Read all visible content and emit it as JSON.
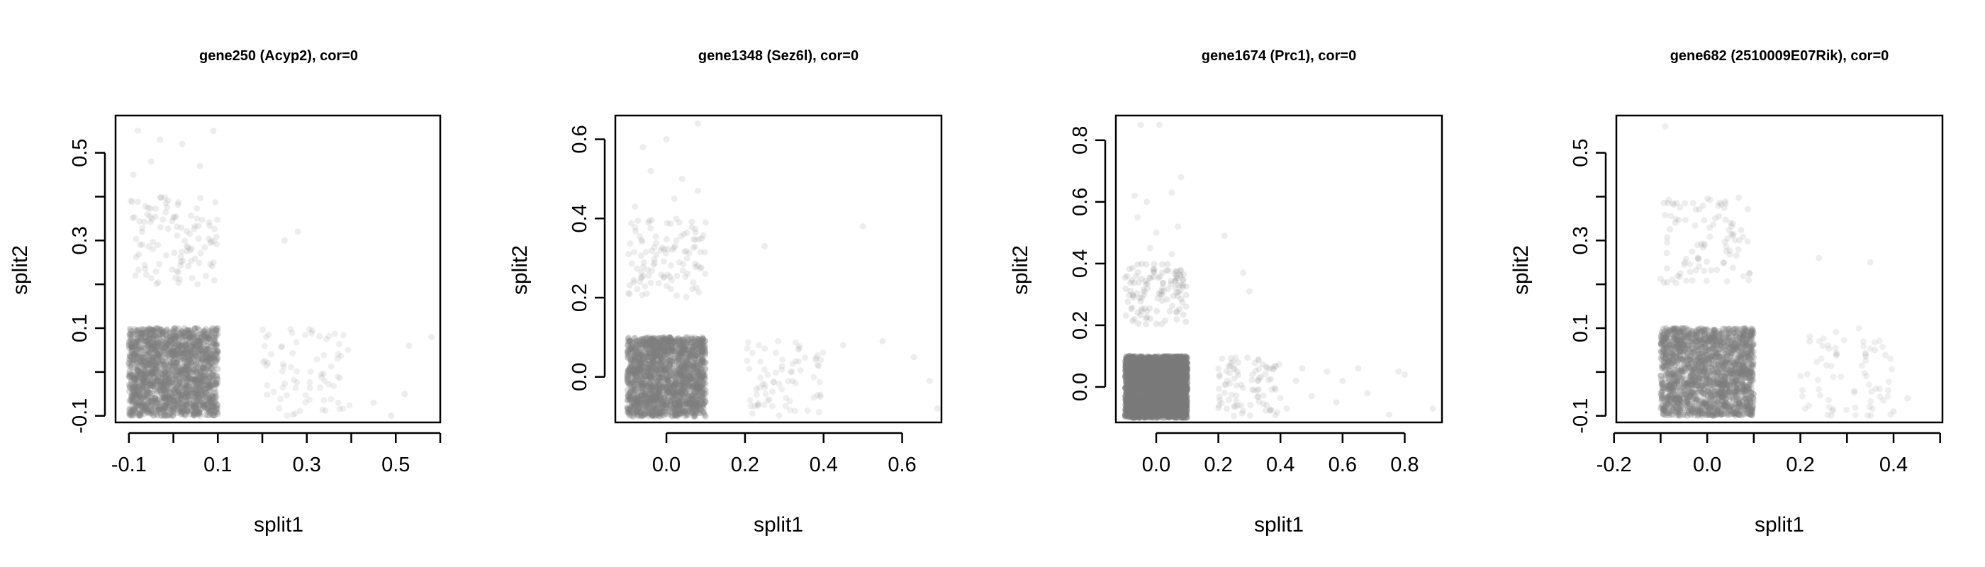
{
  "chart_data": [
    {
      "type": "scatter",
      "title": "gene250 (Acyp2), cor=0",
      "xlabel": "split1",
      "ylabel": "split2",
      "xlim": [
        -0.13,
        0.6
      ],
      "ylim": [
        -0.115,
        0.585
      ],
      "xticks": [
        -0.1,
        0.1,
        0.3,
        0.5
      ],
      "xtick_minor": [
        0.0,
        0.2,
        0.4,
        0.6
      ],
      "xtick_labels": [
        "-0.1",
        "0.1",
        "0.3",
        "0.5"
      ],
      "yticks": [
        -0.1,
        0.1,
        0.3,
        0.5
      ],
      "ytick_minor": [
        0.0,
        0.2,
        0.4
      ],
      "ytick_labels": [
        "-0.1",
        "0.1",
        "0.3",
        "0.5"
      ],
      "clusters": [
        {
          "x_range": [
            -0.1,
            0.1
          ],
          "y_range": [
            -0.1,
            0.1
          ],
          "n": 1800,
          "opacity": 0.28,
          "color": "#7f7f7f"
        },
        {
          "x_range": [
            -0.1,
            0.1
          ],
          "y_range": [
            0.2,
            0.4
          ],
          "n": 110,
          "opacity": 0.16,
          "color": "#8c8c8c"
        },
        {
          "x_range": [
            0.2,
            0.4
          ],
          "y_range": [
            -0.1,
            0.1
          ],
          "n": 75,
          "opacity": 0.14,
          "color": "#8c8c8c"
        }
      ],
      "extra_points": [
        [
          -0.08,
          0.55
        ],
        [
          -0.03,
          0.53
        ],
        [
          0.02,
          0.52
        ],
        [
          0.09,
          0.55
        ],
        [
          0.06,
          0.47
        ],
        [
          -0.09,
          0.45
        ],
        [
          -0.05,
          0.48
        ],
        [
          0.25,
          0.3
        ],
        [
          0.28,
          0.32
        ],
        [
          0.45,
          -0.07
        ],
        [
          0.52,
          -0.05
        ],
        [
          0.53,
          0.06
        ],
        [
          0.58,
          0.08
        ],
        [
          0.49,
          -0.1
        ]
      ]
    },
    {
      "type": "scatter",
      "title": "gene1348 (Sez6l), cor=0",
      "xlabel": "split1",
      "ylabel": "split2",
      "xlim": [
        -0.13,
        0.7
      ],
      "ylim": [
        -0.115,
        0.66
      ],
      "xticks": [
        0.0,
        0.2,
        0.4,
        0.6
      ],
      "xtick_minor": [],
      "xtick_labels": [
        "0.0",
        "0.2",
        "0.4",
        "0.6"
      ],
      "yticks": [
        0.0,
        0.2,
        0.4,
        0.6
      ],
      "ytick_minor": [],
      "ytick_labels": [
        "0.0",
        "0.2",
        "0.4",
        "0.6"
      ],
      "clusters": [
        {
          "x_range": [
            -0.1,
            0.1
          ],
          "y_range": [
            -0.1,
            0.1
          ],
          "n": 1800,
          "opacity": 0.28,
          "color": "#7f7f7f"
        },
        {
          "x_range": [
            -0.1,
            0.1
          ],
          "y_range": [
            0.2,
            0.4
          ],
          "n": 110,
          "opacity": 0.16,
          "color": "#8c8c8c"
        },
        {
          "x_range": [
            0.2,
            0.4
          ],
          "y_range": [
            -0.1,
            0.1
          ],
          "n": 75,
          "opacity": 0.14,
          "color": "#8c8c8c"
        }
      ],
      "extra_points": [
        [
          -0.06,
          0.58
        ],
        [
          0.0,
          0.6
        ],
        [
          0.08,
          0.64
        ],
        [
          -0.04,
          0.52
        ],
        [
          0.04,
          0.5
        ],
        [
          0.08,
          0.47
        ],
        [
          -0.08,
          0.43
        ],
        [
          0.02,
          0.45
        ],
        [
          0.5,
          0.38
        ],
        [
          0.45,
          0.08
        ],
        [
          0.55,
          0.09
        ],
        [
          0.63,
          0.05
        ],
        [
          0.67,
          -0.01
        ],
        [
          0.69,
          -0.08
        ],
        [
          0.25,
          0.33
        ]
      ]
    },
    {
      "type": "scatter",
      "title": "gene1674 (Prc1), cor=0",
      "xlabel": "split1",
      "ylabel": "split2",
      "xlim": [
        -0.13,
        0.92
      ],
      "ylim": [
        -0.115,
        0.88
      ],
      "xticks": [
        0.0,
        0.2,
        0.4,
        0.6,
        0.8
      ],
      "xtick_minor": [],
      "xtick_labels": [
        "0.0",
        "0.2",
        "0.4",
        "0.6",
        "0.8"
      ],
      "yticks": [
        0.0,
        0.2,
        0.4,
        0.6,
        0.8
      ],
      "ytick_minor": [],
      "ytick_labels": [
        "0.0",
        "0.2",
        "0.4",
        "0.6",
        "0.8"
      ],
      "clusters": [
        {
          "x_range": [
            -0.1,
            0.1
          ],
          "y_range": [
            -0.1,
            0.1
          ],
          "n": 2400,
          "opacity": 0.45,
          "color": "#7a7a7a"
        },
        {
          "x_range": [
            -0.1,
            0.1
          ],
          "y_range": [
            0.2,
            0.4
          ],
          "n": 120,
          "opacity": 0.18,
          "color": "#8c8c8c"
        },
        {
          "x_range": [
            0.2,
            0.4
          ],
          "y_range": [
            -0.1,
            0.1
          ],
          "n": 90,
          "opacity": 0.16,
          "color": "#8c8c8c"
        }
      ],
      "extra_points": [
        [
          -0.05,
          0.85
        ],
        [
          0.01,
          0.85
        ],
        [
          -0.07,
          0.62
        ],
        [
          -0.03,
          0.6
        ],
        [
          0.05,
          0.63
        ],
        [
          0.08,
          0.68
        ],
        [
          -0.06,
          0.55
        ],
        [
          0.0,
          0.5
        ],
        [
          0.07,
          0.52
        ],
        [
          -0.02,
          0.45
        ],
        [
          0.05,
          0.43
        ],
        [
          0.22,
          0.49
        ],
        [
          0.28,
          0.37
        ],
        [
          0.3,
          0.31
        ],
        [
          0.45,
          0.02
        ],
        [
          0.5,
          -0.03
        ],
        [
          0.55,
          0.05
        ],
        [
          0.6,
          0.02
        ],
        [
          0.65,
          0.06
        ],
        [
          0.78,
          0.05
        ],
        [
          0.8,
          0.04
        ],
        [
          0.89,
          -0.07
        ],
        [
          0.42,
          -0.07
        ],
        [
          0.47,
          0.06
        ],
        [
          0.58,
          -0.05
        ],
        [
          0.68,
          -0.02
        ],
        [
          0.75,
          -0.09
        ]
      ]
    },
    {
      "type": "scatter",
      "title": "gene682 (2510009E07Rik), cor=0",
      "xlabel": "split1",
      "ylabel": "split2",
      "xlim": [
        -0.195,
        0.505
      ],
      "ylim": [
        -0.115,
        0.585
      ],
      "xticks": [
        -0.2,
        0.0,
        0.2,
        0.4
      ],
      "xtick_minor": [
        -0.1,
        0.1,
        0.3,
        0.5
      ],
      "xtick_labels": [
        "-0.2",
        "0.0",
        "0.2",
        "0.4"
      ],
      "yticks": [
        -0.1,
        0.1,
        0.3,
        0.5
      ],
      "ytick_minor": [
        0.0,
        0.2,
        0.4
      ],
      "ytick_labels": [
        "-0.1",
        "0.1",
        "0.3",
        "0.5"
      ],
      "clusters": [
        {
          "x_range": [
            -0.1,
            0.1
          ],
          "y_range": [
            -0.1,
            0.1
          ],
          "n": 1800,
          "opacity": 0.28,
          "color": "#7f7f7f"
        },
        {
          "x_range": [
            -0.1,
            0.1
          ],
          "y_range": [
            0.2,
            0.4
          ],
          "n": 100,
          "opacity": 0.16,
          "color": "#8c8c8c"
        },
        {
          "x_range": [
            0.2,
            0.4
          ],
          "y_range": [
            -0.1,
            0.1
          ],
          "n": 70,
          "opacity": 0.14,
          "color": "#8c8c8c"
        }
      ],
      "extra_points": [
        [
          -0.09,
          0.56
        ],
        [
          0.24,
          0.26
        ],
        [
          0.35,
          0.25
        ],
        [
          0.4,
          -0.09
        ],
        [
          0.43,
          -0.06
        ],
        [
          0.22,
          0.07
        ],
        [
          0.36,
          0.05
        ]
      ]
    }
  ]
}
